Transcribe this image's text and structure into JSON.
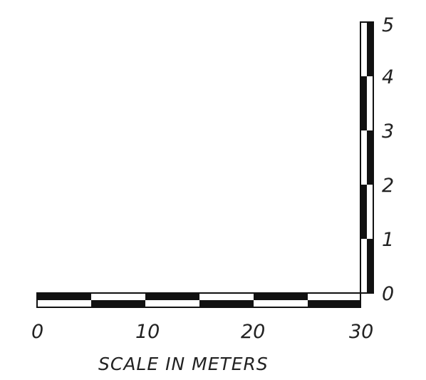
{
  "horizontal_scale": {
    "tick_labels": [
      "0",
      "10",
      "20",
      "30"
    ],
    "segment_pattern": [
      "dark-top",
      "dark-bottom",
      "dark-top",
      "dark-bottom",
      "dark-top",
      "dark-bottom"
    ]
  },
  "vertical_scale": {
    "tick_labels": [
      "0",
      "1",
      "2",
      "3",
      "4",
      "5"
    ],
    "segment_pattern": [
      "dark-right",
      "dark-left",
      "dark-right",
      "dark-left",
      "dark-right"
    ]
  },
  "caption": "SCALE IN METERS",
  "colors": {
    "bar_dark": "#111111",
    "bar_light": "#ffffff",
    "text": "#222222"
  }
}
